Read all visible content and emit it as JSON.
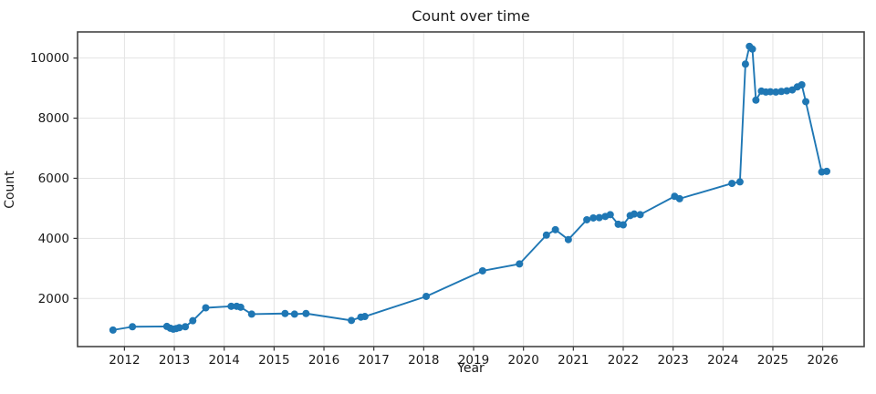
{
  "figure": {
    "background_color": "#ffffff",
    "text_color": "#1a1a1a"
  },
  "chart_data": {
    "type": "line",
    "title": "Count over time",
    "xlabel": "Year",
    "ylabel": "Count",
    "legend": "none",
    "grid": true,
    "grid_color": "#e3e3e3",
    "spine_color": "#444444",
    "tick_color": "#333333",
    "xlim": [
      2011.06,
      2026.83
    ],
    "ylim": [
      400,
      10870
    ],
    "x_ticks": [
      2012,
      2013,
      2014,
      2015,
      2016,
      2017,
      2018,
      2019,
      2020,
      2021,
      2022,
      2023,
      2024,
      2025,
      2026
    ],
    "y_ticks": [
      2000,
      4000,
      6000,
      8000,
      10000
    ],
    "series": [
      {
        "name": "Count",
        "color": "#1f77b4",
        "marker": "circle",
        "marker_radius": 4,
        "line_width": 1.9,
        "points": [
          [
            2011.77,
            950
          ],
          [
            2012.16,
            1060
          ],
          [
            2012.85,
            1070
          ],
          [
            2012.92,
            1010
          ],
          [
            2012.98,
            980
          ],
          [
            2013.04,
            1000
          ],
          [
            2013.1,
            1030
          ],
          [
            2013.22,
            1060
          ],
          [
            2013.37,
            1260
          ],
          [
            2013.63,
            1690
          ],
          [
            2014.14,
            1740
          ],
          [
            2014.25,
            1740
          ],
          [
            2014.33,
            1710
          ],
          [
            2014.55,
            1480
          ],
          [
            2015.22,
            1500
          ],
          [
            2015.41,
            1480
          ],
          [
            2015.64,
            1500
          ],
          [
            2016.55,
            1270
          ],
          [
            2016.74,
            1380
          ],
          [
            2016.82,
            1400
          ],
          [
            2018.05,
            2070
          ],
          [
            2019.18,
            2920
          ],
          [
            2019.92,
            3150
          ],
          [
            2020.46,
            4110
          ],
          [
            2020.64,
            4290
          ],
          [
            2020.9,
            3960
          ],
          [
            2021.27,
            4620
          ],
          [
            2021.4,
            4680
          ],
          [
            2021.52,
            4690
          ],
          [
            2021.64,
            4730
          ],
          [
            2021.74,
            4790
          ],
          [
            2021.9,
            4470
          ],
          [
            2022.0,
            4450
          ],
          [
            2022.14,
            4760
          ],
          [
            2022.22,
            4810
          ],
          [
            2022.34,
            4790
          ],
          [
            2023.03,
            5400
          ],
          [
            2023.13,
            5320
          ],
          [
            2024.18,
            5830
          ],
          [
            2024.34,
            5880
          ],
          [
            2024.45,
            9800
          ],
          [
            2024.53,
            10390
          ],
          [
            2024.59,
            10300
          ],
          [
            2024.66,
            8600
          ],
          [
            2024.77,
            8900
          ],
          [
            2024.86,
            8870
          ],
          [
            2024.95,
            8880
          ],
          [
            2025.06,
            8870
          ],
          [
            2025.17,
            8890
          ],
          [
            2025.28,
            8910
          ],
          [
            2025.39,
            8940
          ],
          [
            2025.49,
            9040
          ],
          [
            2025.58,
            9110
          ],
          [
            2025.66,
            8550
          ],
          [
            2025.98,
            6210
          ],
          [
            2026.08,
            6230
          ]
        ]
      }
    ]
  }
}
